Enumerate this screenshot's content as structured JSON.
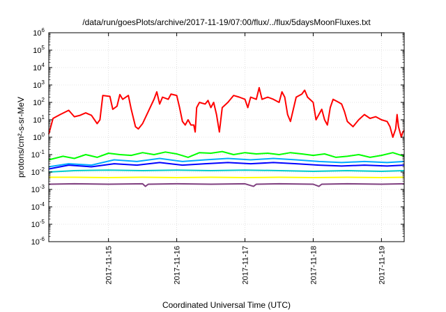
{
  "chart_data": {
    "type": "line",
    "title": "/data/run/goesPlots/archive/2017-11-19/07:00/flux/../flux/5daysMoonFluxes.txt",
    "xlabel": "Coordinated Universal Time (UTC)",
    "ylabel": "protons/cm²-s-sr-MeV",
    "yscale": "log",
    "ylim": [
      1e-06,
      1000000.0
    ],
    "y_ticks": [
      {
        "value": 1e-06,
        "base": "10",
        "exp": "-6"
      },
      {
        "value": 1e-05,
        "base": "10",
        "exp": "-5"
      },
      {
        "value": 0.0001,
        "base": "10",
        "exp": "-4"
      },
      {
        "value": 0.001,
        "base": "10",
        "exp": "-3"
      },
      {
        "value": 0.01,
        "base": "10",
        "exp": "-2"
      },
      {
        "value": 0.1,
        "base": "10",
        "exp": "-1"
      },
      {
        "value": 1,
        "base": "10",
        "exp": "0"
      },
      {
        "value": 10,
        "base": "10",
        "exp": "1"
      },
      {
        "value": 100,
        "base": "10",
        "exp": "2"
      },
      {
        "value": 1000,
        "base": "10",
        "exp": "3"
      },
      {
        "value": 10000,
        "base": "10",
        "exp": "4"
      },
      {
        "value": 100000,
        "base": "10",
        "exp": "5"
      },
      {
        "value": 1000000,
        "base": "10",
        "exp": "6"
      }
    ],
    "xlim": [
      "2017-11-14T03:00",
      "2017-11-19T08:00"
    ],
    "x_ticks": [
      "2017-11-15",
      "2017-11-16",
      "2017-11-17",
      "2017-11-18",
      "2017-11-19"
    ],
    "grid": true,
    "legend": "none",
    "series": [
      {
        "color": "#ff0000",
        "points": [
          [
            "2017-11-14T03:00",
            1.5
          ],
          [
            "2017-11-14T04:30",
            12
          ],
          [
            "2017-11-14T07:00",
            20
          ],
          [
            "2017-11-14T10:00",
            35
          ],
          [
            "2017-11-14T12:00",
            15
          ],
          [
            "2017-11-14T14:00",
            18
          ],
          [
            "2017-11-14T16:00",
            25
          ],
          [
            "2017-11-14T18:00",
            18
          ],
          [
            "2017-11-14T20:00",
            6
          ],
          [
            "2017-11-14T21:00",
            10
          ],
          [
            "2017-11-14T22:00",
            250
          ],
          [
            "2017-11-15T00:30",
            220
          ],
          [
            "2017-11-15T01:30",
            40
          ],
          [
            "2017-11-15T03:00",
            60
          ],
          [
            "2017-11-15T04:00",
            280
          ],
          [
            "2017-11-15T05:00",
            150
          ],
          [
            "2017-11-15T07:00",
            250
          ],
          [
            "2017-11-15T08:00",
            40
          ],
          [
            "2017-11-15T09:30",
            4
          ],
          [
            "2017-11-15T10:30",
            3
          ],
          [
            "2017-11-15T12:00",
            6
          ],
          [
            "2017-11-15T14:00",
            30
          ],
          [
            "2017-11-15T16:00",
            150
          ],
          [
            "2017-11-15T17:00",
            400
          ],
          [
            "2017-11-15T18:00",
            80
          ],
          [
            "2017-11-15T19:00",
            200
          ],
          [
            "2017-11-15T21:00",
            150
          ],
          [
            "2017-11-15T22:00",
            300
          ],
          [
            "2017-11-16T00:00",
            250
          ],
          [
            "2017-11-16T01:00",
            50
          ],
          [
            "2017-11-16T02:00",
            8
          ],
          [
            "2017-11-16T03:00",
            5
          ],
          [
            "2017-11-16T04:00",
            10
          ],
          [
            "2017-11-16T05:00",
            5
          ],
          [
            "2017-11-16T06:00",
            5
          ],
          [
            "2017-11-16T06:30",
            2
          ],
          [
            "2017-11-16T07:00",
            50
          ],
          [
            "2017-11-16T08:00",
            100
          ],
          [
            "2017-11-16T10:00",
            80
          ],
          [
            "2017-11-16T11:00",
            130
          ],
          [
            "2017-11-16T12:00",
            50
          ],
          [
            "2017-11-16T13:00",
            100
          ],
          [
            "2017-11-16T14:00",
            20
          ],
          [
            "2017-11-16T15:00",
            2
          ],
          [
            "2017-11-16T16:00",
            50
          ],
          [
            "2017-11-16T18:00",
            100
          ],
          [
            "2017-11-16T20:00",
            250
          ],
          [
            "2017-11-16T22:00",
            200
          ],
          [
            "2017-11-17T00:00",
            150
          ],
          [
            "2017-11-17T01:00",
            50
          ],
          [
            "2017-11-17T02:00",
            200
          ],
          [
            "2017-11-17T04:00",
            150
          ],
          [
            "2017-11-17T05:00",
            700
          ],
          [
            "2017-11-17T06:00",
            150
          ],
          [
            "2017-11-17T08:00",
            200
          ],
          [
            "2017-11-17T10:00",
            150
          ],
          [
            "2017-11-17T12:00",
            100
          ],
          [
            "2017-11-17T13:00",
            400
          ],
          [
            "2017-11-17T14:00",
            200
          ],
          [
            "2017-11-17T15:00",
            20
          ],
          [
            "2017-11-17T16:00",
            8
          ],
          [
            "2017-11-17T18:00",
            200
          ],
          [
            "2017-11-17T20:00",
            300
          ],
          [
            "2017-11-17T21:00",
            500
          ],
          [
            "2017-11-17T22:00",
            200
          ],
          [
            "2017-11-18T00:00",
            100
          ],
          [
            "2017-11-18T01:00",
            10
          ],
          [
            "2017-11-18T03:00",
            40
          ],
          [
            "2017-11-18T04:00",
            10
          ],
          [
            "2017-11-18T05:00",
            5
          ],
          [
            "2017-11-18T06:00",
            50
          ],
          [
            "2017-11-18T07:00",
            150
          ],
          [
            "2017-11-18T09:00",
            100
          ],
          [
            "2017-11-18T10:00",
            80
          ],
          [
            "2017-11-18T11:00",
            30
          ],
          [
            "2017-11-18T12:00",
            8
          ],
          [
            "2017-11-18T14:00",
            4
          ],
          [
            "2017-11-18T16:00",
            10
          ],
          [
            "2017-11-18T18:00",
            20
          ],
          [
            "2017-11-18T20:00",
            12
          ],
          [
            "2017-11-18T22:00",
            15
          ],
          [
            "2017-11-19T00:00",
            10
          ],
          [
            "2017-11-19T02:00",
            8
          ],
          [
            "2017-11-19T03:00",
            4
          ],
          [
            "2017-11-19T04:00",
            1
          ],
          [
            "2017-11-19T05:00",
            3
          ],
          [
            "2017-11-19T05:30",
            20
          ],
          [
            "2017-11-19T06:00",
            4
          ],
          [
            "2017-11-19T07:00",
            1
          ],
          [
            "2017-11-19T07:30",
            2
          ],
          [
            "2017-11-19T08:00",
            2.5
          ]
        ]
      },
      {
        "color": "#00ff00",
        "points": [
          [
            "2017-11-14T03:00",
            0.05
          ],
          [
            "2017-11-14T08:00",
            0.08
          ],
          [
            "2017-11-14T12:00",
            0.06
          ],
          [
            "2017-11-14T16:00",
            0.1
          ],
          [
            "2017-11-14T20:00",
            0.07
          ],
          [
            "2017-11-15T00:00",
            0.12
          ],
          [
            "2017-11-15T04:00",
            0.1
          ],
          [
            "2017-11-15T08:00",
            0.09
          ],
          [
            "2017-11-15T12:00",
            0.13
          ],
          [
            "2017-11-15T16:00",
            0.1
          ],
          [
            "2017-11-15T20:00",
            0.14
          ],
          [
            "2017-11-16T00:00",
            0.11
          ],
          [
            "2017-11-16T04:00",
            0.07
          ],
          [
            "2017-11-16T08:00",
            0.13
          ],
          [
            "2017-11-16T12:00",
            0.12
          ],
          [
            "2017-11-16T16:00",
            0.15
          ],
          [
            "2017-11-16T20:00",
            0.1
          ],
          [
            "2017-11-17T00:00",
            0.13
          ],
          [
            "2017-11-17T04:00",
            0.11
          ],
          [
            "2017-11-17T08:00",
            0.12
          ],
          [
            "2017-11-17T12:00",
            0.1
          ],
          [
            "2017-11-17T16:00",
            0.13
          ],
          [
            "2017-11-17T20:00",
            0.11
          ],
          [
            "2017-11-18T00:00",
            0.09
          ],
          [
            "2017-11-18T04:00",
            0.11
          ],
          [
            "2017-11-18T08:00",
            0.07
          ],
          [
            "2017-11-18T12:00",
            0.08
          ],
          [
            "2017-11-18T16:00",
            0.1
          ],
          [
            "2017-11-18T20:00",
            0.07
          ],
          [
            "2017-11-19T00:00",
            0.09
          ],
          [
            "2017-11-19T04:00",
            0.13
          ],
          [
            "2017-11-19T08:00",
            0.08
          ]
        ]
      },
      {
        "color": "#00aaff",
        "points": [
          [
            "2017-11-14T03:00",
            0.02
          ],
          [
            "2017-11-14T10:00",
            0.03
          ],
          [
            "2017-11-14T18:00",
            0.025
          ],
          [
            "2017-11-15T02:00",
            0.05
          ],
          [
            "2017-11-15T10:00",
            0.04
          ],
          [
            "2017-11-15T18:00",
            0.06
          ],
          [
            "2017-11-16T02:00",
            0.04
          ],
          [
            "2017-11-16T10:00",
            0.05
          ],
          [
            "2017-11-16T18:00",
            0.06
          ],
          [
            "2017-11-17T02:00",
            0.05
          ],
          [
            "2017-11-17T10:00",
            0.06
          ],
          [
            "2017-11-17T18:00",
            0.05
          ],
          [
            "2017-11-18T02:00",
            0.04
          ],
          [
            "2017-11-18T10:00",
            0.035
          ],
          [
            "2017-11-18T18:00",
            0.04
          ],
          [
            "2017-11-19T02:00",
            0.035
          ],
          [
            "2017-11-19T08:00",
            0.04
          ]
        ]
      },
      {
        "color": "#0000ff",
        "points": [
          [
            "2017-11-14T03:00",
            0.015
          ],
          [
            "2017-11-14T10:00",
            0.025
          ],
          [
            "2017-11-14T18:00",
            0.02
          ],
          [
            "2017-11-15T02:00",
            0.03
          ],
          [
            "2017-11-15T10:00",
            0.025
          ],
          [
            "2017-11-15T18:00",
            0.035
          ],
          [
            "2017-11-16T02:00",
            0.025
          ],
          [
            "2017-11-16T10:00",
            0.03
          ],
          [
            "2017-11-16T18:00",
            0.035
          ],
          [
            "2017-11-17T02:00",
            0.03
          ],
          [
            "2017-11-17T10:00",
            0.035
          ],
          [
            "2017-11-17T18:00",
            0.03
          ],
          [
            "2017-11-18T02:00",
            0.025
          ],
          [
            "2017-11-18T10:00",
            0.022
          ],
          [
            "2017-11-18T18:00",
            0.025
          ],
          [
            "2017-11-19T02:00",
            0.022
          ],
          [
            "2017-11-19T08:00",
            0.025
          ]
        ]
      },
      {
        "color": "#00cccc",
        "points": [
          [
            "2017-11-14T03:00",
            0.01
          ],
          [
            "2017-11-14T12:00",
            0.012
          ],
          [
            "2017-11-15T00:00",
            0.013
          ],
          [
            "2017-11-15T12:00",
            0.012
          ],
          [
            "2017-11-16T00:00",
            0.013
          ],
          [
            "2017-11-16T12:00",
            0.012
          ],
          [
            "2017-11-17T00:00",
            0.013
          ],
          [
            "2017-11-17T12:00",
            0.012
          ],
          [
            "2017-11-18T00:00",
            0.011
          ],
          [
            "2017-11-18T12:00",
            0.012
          ],
          [
            "2017-11-19T00:00",
            0.011
          ],
          [
            "2017-11-19T08:00",
            0.012
          ]
        ]
      },
      {
        "color": "#ffff00",
        "points": [
          [
            "2017-11-14T03:00",
            0.005
          ],
          [
            "2017-11-14T12:00",
            0.005
          ],
          [
            "2017-11-15T00:00",
            0.0048
          ],
          [
            "2017-11-15T12:00",
            0.005
          ],
          [
            "2017-11-16T00:00",
            0.0048
          ],
          [
            "2017-11-16T12:00",
            0.005
          ],
          [
            "2017-11-17T00:00",
            0.0048
          ],
          [
            "2017-11-17T12:00",
            0.005
          ],
          [
            "2017-11-18T00:00",
            0.0048
          ],
          [
            "2017-11-18T12:00",
            0.005
          ],
          [
            "2017-11-19T00:00",
            0.0048
          ],
          [
            "2017-11-19T08:00",
            0.005
          ]
        ]
      },
      {
        "color": "#7f3f7f",
        "points": [
          [
            "2017-11-14T03:00",
            0.002
          ],
          [
            "2017-11-14T12:00",
            0.0021
          ],
          [
            "2017-11-15T00:00",
            0.002
          ],
          [
            "2017-11-15T12:00",
            0.0021
          ],
          [
            "2017-11-15T13:00",
            0.0015
          ],
          [
            "2017-11-15T14:00",
            0.002
          ],
          [
            "2017-11-16T00:00",
            0.0021
          ],
          [
            "2017-11-16T12:00",
            0.002
          ],
          [
            "2017-11-17T00:00",
            0.0021
          ],
          [
            "2017-11-17T03:00",
            0.0015
          ],
          [
            "2017-11-17T04:00",
            0.002
          ],
          [
            "2017-11-17T12:00",
            0.0021
          ],
          [
            "2017-11-18T00:00",
            0.002
          ],
          [
            "2017-11-18T02:00",
            0.0015
          ],
          [
            "2017-11-18T03:00",
            0.002
          ],
          [
            "2017-11-18T12:00",
            0.0021
          ],
          [
            "2017-11-19T00:00",
            0.002
          ],
          [
            "2017-11-19T08:00",
            0.0021
          ]
        ]
      }
    ]
  }
}
